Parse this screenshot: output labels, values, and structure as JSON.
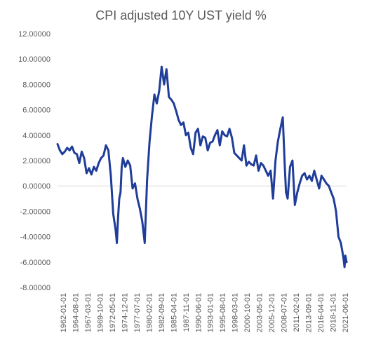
{
  "chart_data": {
    "type": "line",
    "title": "CPI adjusted 10Y UST yield %",
    "xlabel": "",
    "ylabel": "",
    "ylim": [
      -8,
      12
    ],
    "y_ticks": [
      12,
      10,
      8,
      6,
      4,
      2,
      0,
      -2,
      -4,
      -6,
      -8
    ],
    "y_tick_labels": [
      "12.00000",
      "10.00000",
      "8.00000",
      "6.00000",
      "4.00000",
      "2.00000",
      "0.00000",
      "-2.00000",
      "-4.00000",
      "-6.00000",
      "-8.00000"
    ],
    "x_range": [
      "1962-01-01",
      "2021-09-01"
    ],
    "x_tick_labels": [
      "1962-01-01",
      "1964-08-01",
      "1967-03-01",
      "1969-10-01",
      "1972-05-01",
      "1974-12-01",
      "1977-07-01",
      "1980-02-01",
      "1982-09-01",
      "1985-04-01",
      "1987-11-01",
      "1990-06-01",
      "1993-01-01",
      "1995-08-01",
      "1998-03-01",
      "2000-10-01",
      "2003-05-01",
      "2005-12-01",
      "2008-07-01",
      "2011-02-01",
      "2013-09-01",
      "2016-04-01",
      "2018-11-01",
      "2021-06-01"
    ],
    "grid": false,
    "legend": "none",
    "line_color": "#1f3d99",
    "series": [
      {
        "x": [
          "1962-01-01",
          "1962-07-01",
          "1963-01-01",
          "1963-07-01",
          "1964-01-01",
          "1964-07-01",
          "1965-01-01",
          "1965-07-01",
          "1966-01-01",
          "1966-07-01",
          "1967-01-01",
          "1967-07-01",
          "1968-01-01",
          "1968-07-01",
          "1969-01-01",
          "1969-07-01",
          "1970-01-01",
          "1970-07-01",
          "1971-01-01",
          "1971-07-01",
          "1972-01-01",
          "1972-07-01",
          "1973-01-01",
          "1973-07-01",
          "1974-01-01",
          "1974-04-01",
          "1974-07-01",
          "1974-10-01",
          "1975-01-01",
          "1975-04-01",
          "1975-07-01",
          "1976-01-01",
          "1976-07-01",
          "1977-01-01",
          "1977-07-01",
          "1978-01-01",
          "1978-07-01",
          "1979-01-01",
          "1979-07-01",
          "1980-01-01",
          "1980-04-01",
          "1980-07-01",
          "1981-01-01",
          "1981-07-01",
          "1982-01-01",
          "1982-07-01",
          "1983-01-01",
          "1983-07-01",
          "1984-01-01",
          "1984-07-01",
          "1985-01-01",
          "1985-07-01",
          "1986-01-01",
          "1986-07-01",
          "1987-01-01",
          "1987-07-01",
          "1988-01-01",
          "1988-07-01",
          "1989-01-01",
          "1989-07-01",
          "1990-01-01",
          "1990-07-01",
          "1991-01-01",
          "1991-07-01",
          "1992-01-01",
          "1992-07-01",
          "1993-01-01",
          "1993-07-01",
          "1994-01-01",
          "1994-07-01",
          "1995-01-01",
          "1995-07-01",
          "1996-01-01",
          "1996-07-01",
          "1997-01-01",
          "1997-07-01",
          "1998-01-01",
          "1998-07-01",
          "1999-01-01",
          "1999-07-01",
          "2000-01-01",
          "2000-07-01",
          "2001-01-01",
          "2001-07-01",
          "2002-01-01",
          "2002-07-01",
          "2003-01-01",
          "2003-07-01",
          "2004-01-01",
          "2004-07-01",
          "2005-01-01",
          "2005-07-01",
          "2006-01-01",
          "2006-07-01",
          "2007-01-01",
          "2007-07-01",
          "2008-01-01",
          "2008-07-01",
          "2008-12-01",
          "2009-03-01",
          "2009-07-01",
          "2010-01-01",
          "2010-07-01",
          "2011-01-01",
          "2011-07-01",
          "2012-01-01",
          "2012-07-01",
          "2013-01-01",
          "2013-07-01",
          "2014-01-01",
          "2014-07-01",
          "2015-01-01",
          "2015-07-01",
          "2016-01-01",
          "2016-07-01",
          "2017-01-01",
          "2017-07-01",
          "2018-01-01",
          "2018-07-01",
          "2019-01-01",
          "2019-07-01",
          "2020-01-01",
          "2020-07-01",
          "2021-01-01",
          "2021-04-01",
          "2021-06-01",
          "2021-09-01"
        ],
        "y": [
          3.3,
          2.8,
          2.5,
          2.7,
          3.0,
          2.8,
          3.1,
          2.6,
          2.5,
          1.8,
          2.7,
          2.2,
          1.0,
          1.4,
          0.9,
          1.5,
          1.2,
          1.8,
          2.2,
          2.4,
          3.2,
          2.8,
          0.8,
          -2.2,
          -3.5,
          -4.5,
          -2.5,
          -1.0,
          -0.5,
          1.5,
          2.2,
          1.5,
          2.0,
          1.6,
          -0.2,
          0.2,
          -1.0,
          -1.8,
          -2.8,
          -4.5,
          -2.0,
          0.5,
          3.5,
          5.5,
          7.2,
          6.5,
          7.5,
          9.4,
          8.0,
          9.2,
          7.0,
          6.8,
          6.5,
          5.9,
          5.2,
          4.8,
          5.0,
          4.0,
          4.2,
          3.0,
          2.5,
          4.2,
          4.5,
          3.2,
          3.9,
          3.8,
          2.8,
          3.4,
          3.5,
          4.0,
          4.4,
          3.2,
          4.3,
          4.0,
          3.9,
          4.5,
          3.8,
          2.6,
          2.4,
          2.2,
          2.0,
          3.2,
          1.6,
          1.9,
          1.7,
          1.6,
          2.4,
          1.2,
          1.8,
          1.6,
          1.2,
          0.8,
          1.2,
          -1.0,
          2.0,
          3.5,
          4.5,
          5.4,
          1.5,
          -0.5,
          -1.0,
          1.5,
          2.0,
          -1.5,
          -0.5,
          0.2,
          0.8,
          1.0,
          0.5,
          0.8,
          0.4,
          1.2,
          0.5,
          -0.2,
          0.8,
          0.5,
          0.2,
          0.0,
          -0.5,
          -1.0,
          -2.0,
          -4.0,
          -4.5,
          -5.6,
          -6.4,
          -5.5,
          -6.0
        ]
      }
    ]
  }
}
